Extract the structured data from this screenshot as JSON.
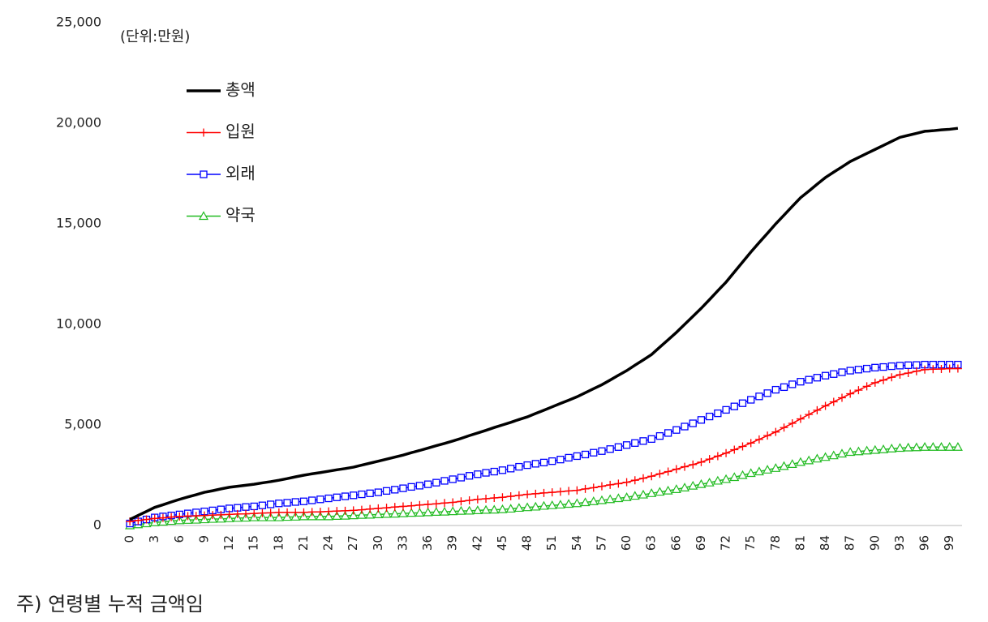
{
  "chart_data": {
    "type": "line",
    "unit_label": "(단위:만원)",
    "note": "주) 연령별 누적 금액임",
    "legend": "upper left",
    "grid": false,
    "categories": [
      "0",
      null,
      null,
      "3",
      null,
      null,
      "6",
      null,
      null,
      "9",
      null,
      null,
      "12",
      null,
      null,
      "15",
      null,
      null,
      "18",
      null,
      null,
      "21",
      null,
      null,
      "24",
      null,
      null,
      "27",
      null,
      null,
      "30",
      null,
      null,
      "33",
      null,
      null,
      "36",
      null,
      null,
      "39",
      null,
      null,
      "42",
      null,
      null,
      "45",
      null,
      null,
      "48",
      null,
      null,
      "51",
      null,
      null,
      "54",
      null,
      null,
      "57",
      null,
      null,
      "60",
      null,
      null,
      "63",
      null,
      null,
      "66",
      null,
      null,
      "69",
      null,
      null,
      "72",
      null,
      null,
      "75",
      null,
      null,
      "78",
      null,
      null,
      "81",
      null,
      null,
      "84",
      null,
      null,
      "87",
      null,
      null,
      "90",
      null,
      null,
      "93",
      null,
      null,
      "96",
      null,
      null,
      "99",
      null
    ],
    "ylim": [
      0,
      25000
    ],
    "yticks": [
      0,
      {
        "value": 5000,
        "label": "5,000"
      },
      {
        "value": 10000,
        "label": "10,000"
      },
      {
        "value": 15000,
        "label": "15,000"
      },
      {
        "value": 20000,
        "label": "20,000"
      },
      {
        "value": 25000,
        "label": "25,000"
      }
    ],
    "series": [
      {
        "name": "총액",
        "color": "#000000",
        "marker": "none",
        "values": [
          300,
          500,
          700,
          900,
          1030,
          1170,
          1300,
          1420,
          1530,
          1650,
          1730,
          1820,
          1900,
          1950,
          2000,
          2050,
          2120,
          2180,
          2250,
          2330,
          2420,
          2500,
          2570,
          2630,
          2700,
          2770,
          2830,
          2900,
          3000,
          3100,
          3200,
          3300,
          3400,
          3500,
          3620,
          3730,
          3850,
          3970,
          4080,
          4200,
          4330,
          4470,
          4600,
          4730,
          4870,
          5000,
          5130,
          5270,
          5400,
          5570,
          5730,
          5900,
          6070,
          6230,
          6400,
          6600,
          6800,
          7000,
          7230,
          7470,
          7700,
          7970,
          8230,
          8500,
          8870,
          9230,
          9600,
          10000,
          10400,
          10800,
          11230,
          11670,
          12100,
          12600,
          13100,
          13600,
          14070,
          14530,
          15000,
          15430,
          15870,
          16300,
          16630,
          16970,
          17300,
          17570,
          17830,
          18100,
          18300,
          18500,
          18700,
          18900,
          19100,
          19300,
          19400,
          19500,
          19600,
          19630,
          19670,
          19700,
          19750
        ]
      },
      {
        "name": "입원",
        "color": "#ff0000",
        "marker": "plus",
        "values": [
          200,
          250,
          300,
          350,
          380,
          420,
          450,
          470,
          480,
          500,
          520,
          530,
          550,
          570,
          580,
          600,
          620,
          630,
          650,
          650,
          650,
          650,
          670,
          680,
          700,
          720,
          730,
          750,
          780,
          820,
          850,
          880,
          920,
          950,
          980,
          1020,
          1050,
          1080,
          1120,
          1150,
          1200,
          1250,
          1300,
          1330,
          1370,
          1400,
          1450,
          1500,
          1550,
          1580,
          1620,
          1650,
          1680,
          1720,
          1750,
          1820,
          1880,
          1950,
          2020,
          2080,
          2150,
          2250,
          2350,
          2450,
          2570,
          2680,
          2800,
          2920,
          3030,
          3150,
          3300,
          3450,
          3600,
          3770,
          3930,
          4100,
          4280,
          4470,
          4650,
          4870,
          5080,
          5300,
          5520,
          5730,
          5950,
          6150,
          6350,
          6550,
          6730,
          6920,
          7100,
          7230,
          7370,
          7500,
          7580,
          7670,
          7750,
          7770,
          7780,
          7800,
          7800
        ]
      },
      {
        "name": "외래",
        "color": "#0000ff",
        "marker": "square",
        "values": [
          100,
          200,
          300,
          400,
          450,
          500,
          550,
          600,
          650,
          700,
          750,
          800,
          850,
          880,
          920,
          950,
          1000,
          1050,
          1100,
          1130,
          1170,
          1200,
          1250,
          1300,
          1350,
          1400,
          1450,
          1500,
          1550,
          1600,
          1650,
          1720,
          1780,
          1850,
          1920,
          1980,
          2050,
          2130,
          2220,
          2300,
          2380,
          2470,
          2550,
          2620,
          2680,
          2750,
          2830,
          2920,
          3000,
          3070,
          3130,
          3200,
          3280,
          3370,
          3450,
          3530,
          3620,
          3700,
          3800,
          3900,
          4000,
          4100,
          4200,
          4300,
          4450,
          4600,
          4750,
          4920,
          5080,
          5250,
          5420,
          5580,
          5750,
          5920,
          6080,
          6250,
          6420,
          6580,
          6750,
          6880,
          7020,
          7150,
          7250,
          7350,
          7450,
          7530,
          7620,
          7700,
          7750,
          7800,
          7850,
          7880,
          7920,
          7950,
          7970,
          7980,
          8000,
          8000,
          8000,
          8000,
          8000
        ]
      },
      {
        "name": "약국",
        "color": "#22bb22",
        "marker": "triangle",
        "values": [
          0,
          50,
          100,
          150,
          180,
          220,
          250,
          270,
          280,
          300,
          320,
          330,
          350,
          370,
          380,
          400,
          400,
          400,
          400,
          420,
          430,
          450,
          450,
          450,
          450,
          470,
          480,
          500,
          520,
          530,
          550,
          570,
          580,
          600,
          620,
          630,
          650,
          670,
          680,
          700,
          720,
          730,
          750,
          770,
          780,
          800,
          830,
          870,
          900,
          930,
          970,
          1000,
          1030,
          1070,
          1100,
          1150,
          1200,
          1250,
          1300,
          1350,
          1400,
          1470,
          1530,
          1600,
          1670,
          1730,
          1800,
          1880,
          1970,
          2050,
          2130,
          2220,
          2300,
          2400,
          2500,
          2600,
          2680,
          2770,
          2850,
          2950,
          3050,
          3150,
          3230,
          3320,
          3400,
          3480,
          3570,
          3650,
          3680,
          3720,
          3750,
          3780,
          3820,
          3850,
          3870,
          3880,
          3900,
          3900,
          3900,
          3900,
          3900
        ]
      }
    ]
  }
}
